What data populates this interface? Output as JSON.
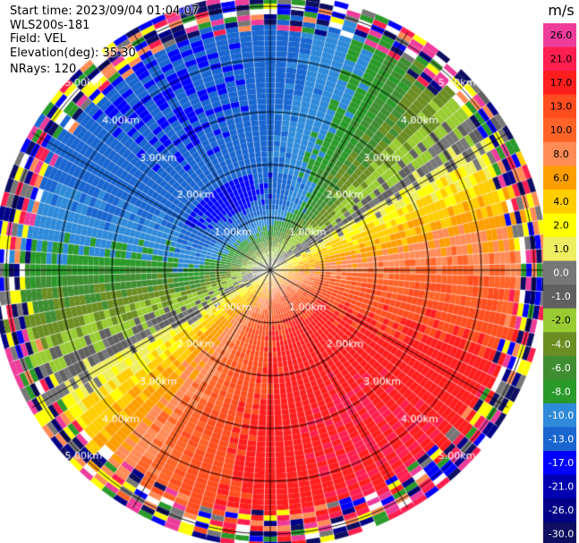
{
  "header": {
    "start_time": "Start time: 2023/09/04 01:04:07",
    "instrument": "WLS200s-181",
    "field": "Field: VEL",
    "elevation": "Elevation(deg): 35.30",
    "nrays": "NRays: 120"
  },
  "chart_data": {
    "type": "ppi",
    "title": "",
    "field": "VEL",
    "units": "m/s",
    "n_rays": 120,
    "elevation_deg": 35.3,
    "range_rings": [
      {
        "label": "1.00km"
      },
      {
        "label": "2.00km"
      },
      {
        "label": "3.00km"
      },
      {
        "label": "4.00km"
      },
      {
        "label": "5.00km"
      }
    ],
    "colorbar": {
      "label": "m/s",
      "ticks": [
        "26.0",
        "21.0",
        "17.0",
        "13.0",
        "10.0",
        "8.0",
        "6.0",
        "4.0",
        "2.0",
        "1.0",
        "0.0",
        "-1.0",
        "-2.0",
        "-4.0",
        "-6.0",
        "-8.0",
        "-10.0",
        "-13.0",
        "-17.0",
        "-21.0",
        "-26.0",
        "-30.0"
      ],
      "colors": [
        "#ee3c9b",
        "#ff1f4f",
        "#ff1e1e",
        "#fe4d1f",
        "#ff6328",
        "#ff8c57",
        "#fd9e00",
        "#ffcd00",
        "#ffff00",
        "#eeee60",
        "#777777",
        "#606060",
        "#99cc33",
        "#6b8e23",
        "#3f8e32",
        "#2a9a2a",
        "#2f8ad9",
        "#1a66d0",
        "#0000ff",
        "#0000b0",
        "#000088",
        "#0e0e60"
      ]
    },
    "wind_field": {
      "description": "approaching/receding velocity pattern",
      "positive_sector_center_deg": 150,
      "inner_speed_max": 13,
      "outer_speed_max": 17,
      "negative_peak_value": -21,
      "noise_begin_range_km": 4.5
    }
  }
}
